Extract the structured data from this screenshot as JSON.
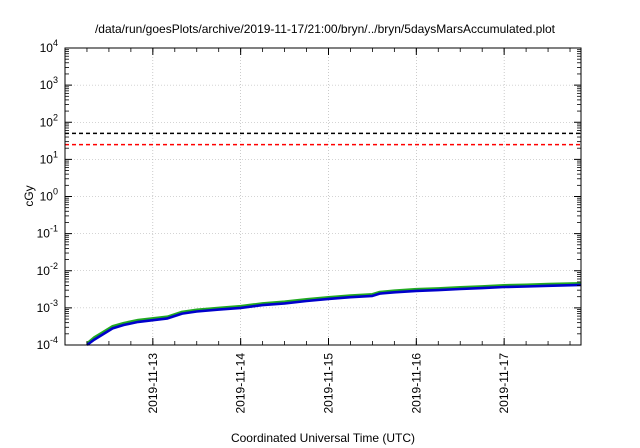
{
  "chart_data": {
    "type": "line",
    "title": "/data/run/goesPlots/archive/2019-11-17/21:00/bryn/../bryn/5daysMarsAccumulated.plot",
    "xlabel": "Coordinated Universal Time (UTC)",
    "ylabel": "cGy",
    "yscale": "log",
    "ylim": [
      0.0001,
      10000
    ],
    "xlim": [
      "2019-11-12 00:00",
      "2019-11-17 21:00"
    ],
    "grid": true,
    "x_ticks": [
      "2019-11-13",
      "2019-11-14",
      "2019-11-15",
      "2019-11-16",
      "2019-11-17"
    ],
    "y_ticks": [
      {
        "value": 0.0001,
        "base": "10",
        "exp": "-4"
      },
      {
        "value": 0.001,
        "base": "10",
        "exp": "-3"
      },
      {
        "value": 0.01,
        "base": "10",
        "exp": "-2"
      },
      {
        "value": 0.1,
        "base": "10",
        "exp": "-1"
      },
      {
        "value": 1,
        "base": "10",
        "exp": "0"
      },
      {
        "value": 10,
        "base": "10",
        "exp": "1"
      },
      {
        "value": 100,
        "base": "10",
        "exp": "2"
      },
      {
        "value": 1000,
        "base": "10",
        "exp": "3"
      },
      {
        "value": 10000,
        "base": "10",
        "exp": "4"
      }
    ],
    "reference_lines": [
      {
        "value": 50,
        "color": "#000000",
        "style": "dashed"
      },
      {
        "value": 25,
        "color": "#ff0000",
        "style": "dashed"
      }
    ],
    "series": [
      {
        "color": "#22aa22",
        "x": [
          "2019-11-12 06:00",
          "2019-11-12 08:00",
          "2019-11-12 10:00",
          "2019-11-12 13:00",
          "2019-11-12 16:00",
          "2019-11-12 20:00",
          "2019-11-13 04:00",
          "2019-11-13 08:00",
          "2019-11-13 12:00",
          "2019-11-13 18:00",
          "2019-11-14 00:00",
          "2019-11-14 06:00",
          "2019-11-14 12:00",
          "2019-11-14 18:00",
          "2019-11-15 00:00",
          "2019-11-15 06:00",
          "2019-11-15 12:00",
          "2019-11-15 14:00",
          "2019-11-15 18:00",
          "2019-11-16 00:00",
          "2019-11-16 06:00",
          "2019-11-16 12:00",
          "2019-11-16 18:00",
          "2019-11-17 00:00",
          "2019-11-17 06:00",
          "2019-11-17 12:00",
          "2019-11-17 21:00"
        ],
        "y": [
          0.00011,
          0.00016,
          0.00021,
          0.00032,
          0.00039,
          0.00047,
          0.00058,
          0.00078,
          0.00089,
          0.001,
          0.00111,
          0.00132,
          0.00147,
          0.0017,
          0.00193,
          0.00215,
          0.00232,
          0.00268,
          0.0029,
          0.00318,
          0.00335,
          0.00358,
          0.00378,
          0.00405,
          0.00418,
          0.00437,
          0.0046
        ]
      },
      {
        "color": "#0000cc",
        "x": [
          "2019-11-12 06:00",
          "2019-11-12 08:00",
          "2019-11-12 10:00",
          "2019-11-12 13:00",
          "2019-11-12 16:00",
          "2019-11-12 20:00",
          "2019-11-13 04:00",
          "2019-11-13 08:00",
          "2019-11-13 12:00",
          "2019-11-13 18:00",
          "2019-11-14 00:00",
          "2019-11-14 06:00",
          "2019-11-14 12:00",
          "2019-11-14 18:00",
          "2019-11-15 00:00",
          "2019-11-15 06:00",
          "2019-11-15 12:00",
          "2019-11-15 14:00",
          "2019-11-15 18:00",
          "2019-11-16 00:00",
          "2019-11-16 06:00",
          "2019-11-16 12:00",
          "2019-11-16 18:00",
          "2019-11-17 00:00",
          "2019-11-17 06:00",
          "2019-11-17 12:00",
          "2019-11-17 21:00"
        ],
        "y": [
          9.5e-05,
          0.00014,
          0.000185,
          0.00028,
          0.000345,
          0.00042,
          0.00052,
          0.0007,
          0.0008,
          0.0009,
          0.001,
          0.00119,
          0.00132,
          0.00153,
          0.00174,
          0.00194,
          0.0021,
          0.00242,
          0.00262,
          0.00287,
          0.00302,
          0.00323,
          0.00341,
          0.00365,
          0.00377,
          0.00394,
          0.00415
        ]
      }
    ]
  }
}
